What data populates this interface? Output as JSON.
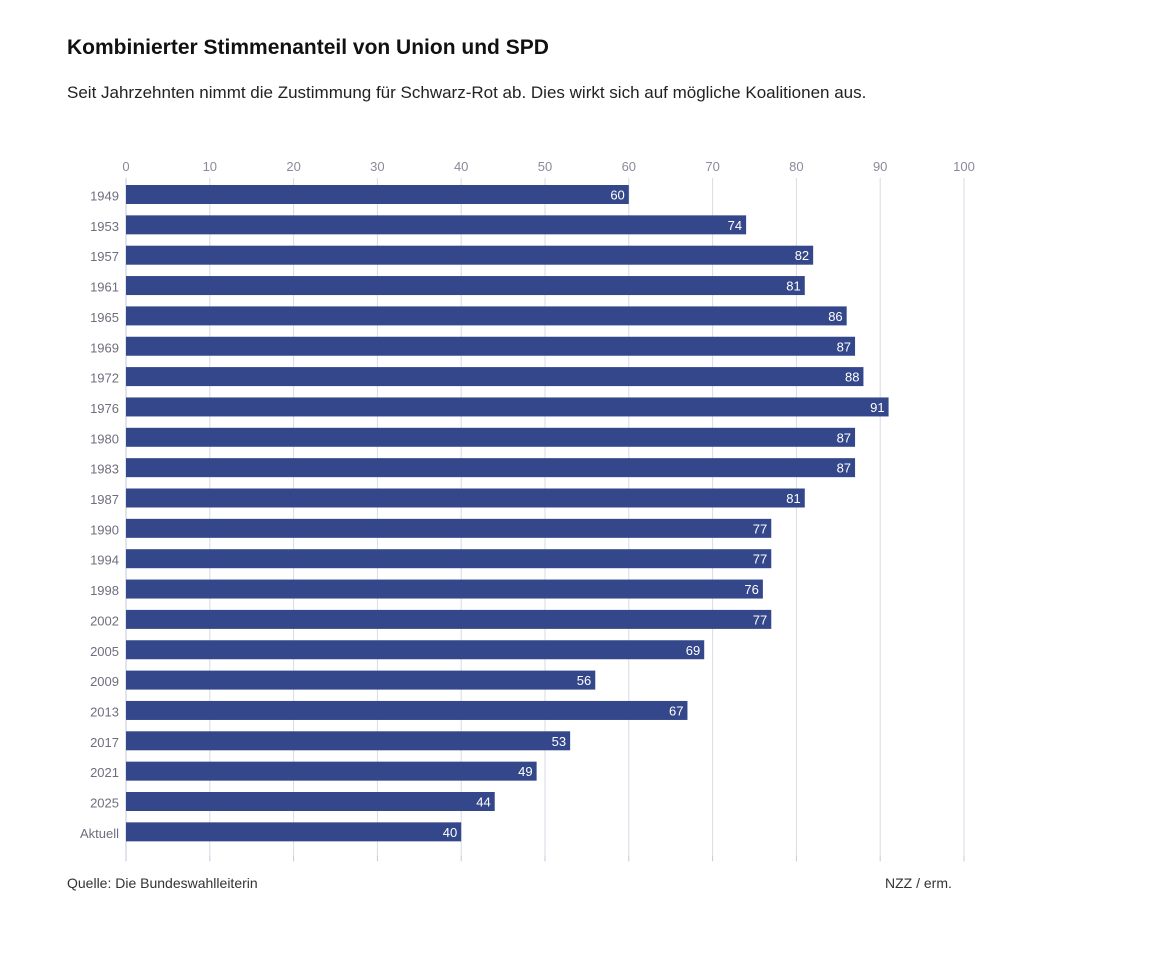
{
  "header": {
    "title": "Kombinierter Stimmenanteil von Union und SPD",
    "subtitle": "Seit Jahrzehnten nimmt die Zustimmung für Schwarz-Rot ab. Dies wirkt sich auf mögliche Koalitionen aus."
  },
  "footer": {
    "source": "Quelle: Die Bundeswahlleiterin",
    "credit": "NZZ / erm."
  },
  "colors": {
    "bar": "#34478a",
    "grid": "#d9dbe6",
    "axis": "#c6c9d8"
  },
  "chart_data": {
    "type": "bar",
    "orientation": "horizontal",
    "title": "Kombinierter Stimmenanteil von Union und SPD",
    "xlabel": "",
    "ylabel": "",
    "xlim": [
      0,
      100
    ],
    "ticks": [
      0,
      10,
      20,
      30,
      40,
      50,
      60,
      70,
      80,
      90,
      100
    ],
    "grid": true,
    "categories": [
      "1949",
      "1953",
      "1957",
      "1961",
      "1965",
      "1969",
      "1972",
      "1976",
      "1980",
      "1983",
      "1987",
      "1990",
      "1994",
      "1998",
      "2002",
      "2005",
      "2009",
      "2013",
      "2017",
      "2021",
      "2025",
      "Aktuell"
    ],
    "values": [
      60,
      74,
      82,
      81,
      86,
      87,
      88,
      91,
      87,
      87,
      81,
      77,
      77,
      76,
      77,
      69,
      56,
      67,
      53,
      49,
      44,
      40
    ]
  }
}
